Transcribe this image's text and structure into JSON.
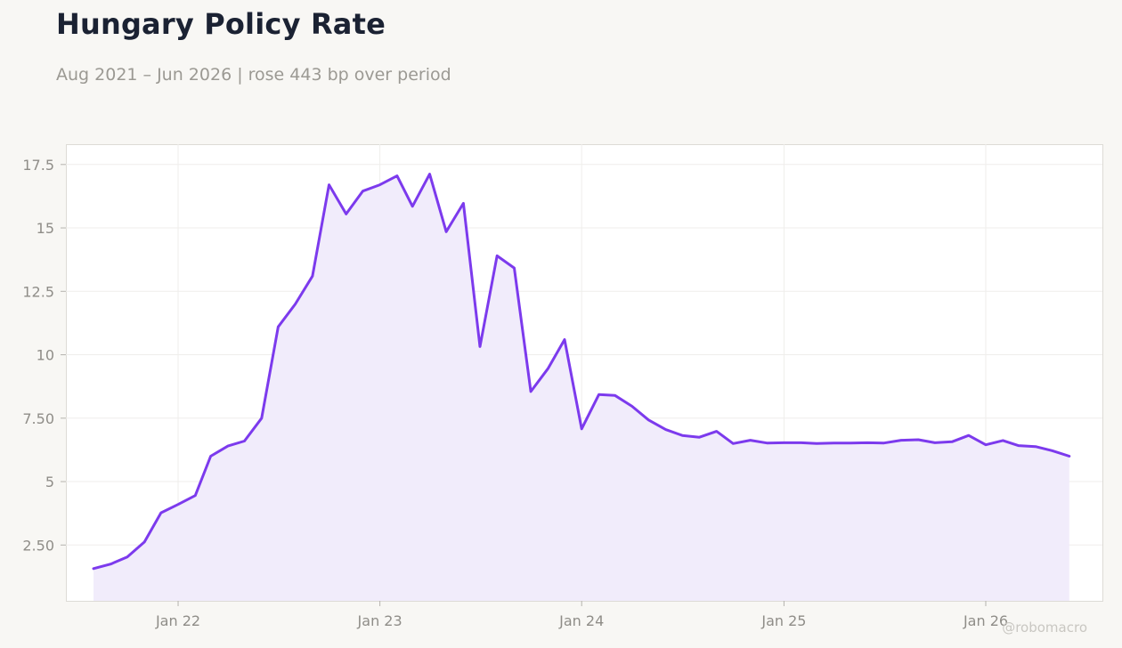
{
  "header": {
    "title": "Hungary Policy Rate",
    "subtitle": "Aug 2021 – Jun 2026 | rose 443 bp over period"
  },
  "watermark": "@robomacro",
  "colors": {
    "line": "#7c3aed",
    "fill": "#f1ecfb",
    "background": "#f8f7f4",
    "plot_background": "#ffffff"
  },
  "chart_data": {
    "type": "area",
    "title": "Hungary Policy Rate",
    "subtitle": "Aug 2021 – Jun 2026 | rose 443 bp over period",
    "xlabel": "",
    "ylabel": "",
    "grid": true,
    "x_ticks": [
      {
        "date": "2022-01-01",
        "label": "Jan 22"
      },
      {
        "date": "2023-01-01",
        "label": "Jan 23"
      },
      {
        "date": "2024-01-01",
        "label": "Jan 24"
      },
      {
        "date": "2025-01-01",
        "label": "Jan 25"
      },
      {
        "date": "2026-01-01",
        "label": "Jan 26"
      }
    ],
    "y_ticks": [
      {
        "value": 2.5,
        "label": "2.50"
      },
      {
        "value": 5,
        "label": "5"
      },
      {
        "value": 7.5,
        "label": "7.50"
      },
      {
        "value": 10,
        "label": "10"
      },
      {
        "value": 12.5,
        "label": "12.5"
      },
      {
        "value": 15,
        "label": "15"
      },
      {
        "value": 17.5,
        "label": "17.5"
      }
    ],
    "xlim": [
      "2021-06-12",
      "2026-07-31"
    ],
    "ylim": [
      0.3,
      18.3
    ],
    "x": [
      "2021-08-01",
      "2021-09-01",
      "2021-10-01",
      "2021-11-01",
      "2021-12-01",
      "2022-01-01",
      "2022-02-01",
      "2022-03-01",
      "2022-04-01",
      "2022-05-01",
      "2022-06-01",
      "2022-07-01",
      "2022-08-01",
      "2022-09-01",
      "2022-10-01",
      "2022-11-01",
      "2022-12-01",
      "2023-01-01",
      "2023-02-01",
      "2023-03-01",
      "2023-04-01",
      "2023-05-01",
      "2023-06-01",
      "2023-07-01",
      "2023-08-01",
      "2023-09-01",
      "2023-10-01",
      "2023-11-01",
      "2023-12-01",
      "2024-01-01",
      "2024-02-01",
      "2024-03-01",
      "2024-04-01",
      "2024-05-01",
      "2024-06-01",
      "2024-07-01",
      "2024-08-01",
      "2024-09-01",
      "2024-10-01",
      "2024-11-01",
      "2024-12-01",
      "2025-01-01",
      "2025-02-01",
      "2025-03-01",
      "2025-04-01",
      "2025-05-01",
      "2025-06-01",
      "2025-07-01",
      "2025-08-01",
      "2025-09-01",
      "2025-10-01",
      "2025-11-01",
      "2025-12-01",
      "2026-01-01",
      "2026-02-01",
      "2026-03-01",
      "2026-04-01",
      "2026-05-01",
      "2026-06-01"
    ],
    "series": [
      {
        "values": [
          1.57,
          1.75,
          2.03,
          2.62,
          3.77,
          4.1,
          4.45,
          6.0,
          6.4,
          6.6,
          7.5,
          11.1,
          12.0,
          13.1,
          16.7,
          15.55,
          16.45,
          16.7,
          17.05,
          15.85,
          17.12,
          14.85,
          15.97,
          10.32,
          13.9,
          13.42,
          8.55,
          9.45,
          10.6,
          7.08,
          8.43,
          8.4,
          7.97,
          7.43,
          7.05,
          6.82,
          6.75,
          6.98,
          6.5,
          6.63,
          6.52,
          6.53,
          6.53,
          6.5,
          6.52,
          6.52,
          6.53,
          6.52,
          6.63,
          6.65,
          6.53,
          6.57,
          6.82,
          6.45,
          6.62,
          6.42,
          6.38,
          6.22,
          6.0
        ]
      }
    ]
  }
}
